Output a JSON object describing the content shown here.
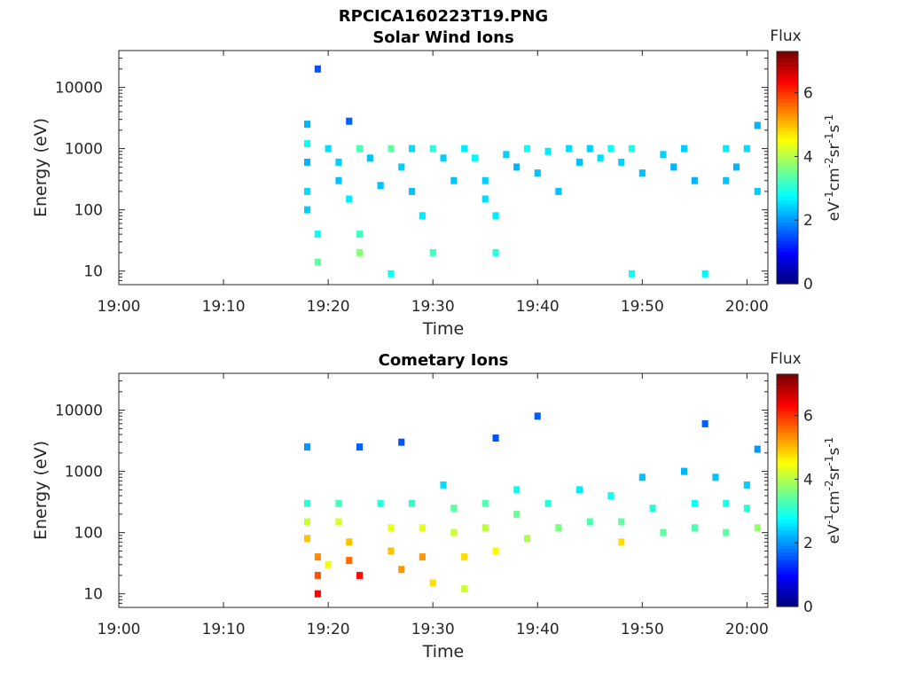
{
  "figure_title": "RPCICA160223T19.PNG",
  "chart_data": [
    {
      "type": "heatmap",
      "title": "Solar Wind Ions",
      "xlabel": "Time",
      "ylabel": "Energy (eV)",
      "x_range": [
        "19:00",
        "20:02"
      ],
      "x_ticks": [
        "19:00",
        "19:10",
        "19:20",
        "19:30",
        "19:40",
        "19:50",
        "20:00"
      ],
      "y_scale": "log",
      "y_range": [
        6,
        40000
      ],
      "y_ticks": [
        "10",
        "100",
        "1000",
        "10000"
      ],
      "colorbar": {
        "label": "Flux",
        "unit": "eV-1cm-2sr-1s-1",
        "range": [
          0,
          7.3
        ],
        "ticks": [
          "0",
          "2",
          "4",
          "6"
        ]
      },
      "data_start": "19:17",
      "cells": [
        {
          "t": "19:18",
          "e": 2500,
          "v": 2.2
        },
        {
          "t": "19:18",
          "e": 1200,
          "v": 2.8
        },
        {
          "t": "19:18",
          "e": 600,
          "v": 2.2
        },
        {
          "t": "19:18",
          "e": 200,
          "v": 2.5
        },
        {
          "t": "19:18",
          "e": 100,
          "v": 2.4
        },
        {
          "t": "19:19",
          "e": 40,
          "v": 2.8
        },
        {
          "t": "19:19",
          "e": 14,
          "v": 3.4
        },
        {
          "t": "19:19",
          "e": 20000,
          "v": 1.5
        },
        {
          "t": "19:20",
          "e": 1000,
          "v": 2.5
        },
        {
          "t": "19:21",
          "e": 600,
          "v": 2.4
        },
        {
          "t": "19:21",
          "e": 300,
          "v": 2.3
        },
        {
          "t": "19:22",
          "e": 150,
          "v": 2.6
        },
        {
          "t": "19:22",
          "e": 2800,
          "v": 1.6
        },
        {
          "t": "19:23",
          "e": 40,
          "v": 3.2
        },
        {
          "t": "19:23",
          "e": 20,
          "v": 3.7
        },
        {
          "t": "19:23",
          "e": 1000,
          "v": 3.3
        },
        {
          "t": "19:24",
          "e": 700,
          "v": 2.3
        },
        {
          "t": "19:25",
          "e": 250,
          "v": 2.3
        },
        {
          "t": "19:26",
          "e": 1000,
          "v": 3.4
        },
        {
          "t": "19:26",
          "e": 9,
          "v": 2.8
        },
        {
          "t": "19:27",
          "e": 500,
          "v": 2.4
        },
        {
          "t": "19:28",
          "e": 1000,
          "v": 2.5
        },
        {
          "t": "19:28",
          "e": 200,
          "v": 2.3
        },
        {
          "t": "19:29",
          "e": 80,
          "v": 2.6
        },
        {
          "t": "19:30",
          "e": 1000,
          "v": 3.0
        },
        {
          "t": "19:30",
          "e": 20,
          "v": 3.2
        },
        {
          "t": "19:31",
          "e": 700,
          "v": 2.4
        },
        {
          "t": "19:32",
          "e": 300,
          "v": 2.3
        },
        {
          "t": "19:33",
          "e": 1000,
          "v": 2.6
        },
        {
          "t": "19:34",
          "e": 700,
          "v": 2.7
        },
        {
          "t": "19:35",
          "e": 300,
          "v": 2.4
        },
        {
          "t": "19:35",
          "e": 150,
          "v": 2.5
        },
        {
          "t": "19:36",
          "e": 80,
          "v": 2.6
        },
        {
          "t": "19:36",
          "e": 20,
          "v": 3.0
        },
        {
          "t": "19:37",
          "e": 800,
          "v": 2.4
        },
        {
          "t": "19:38",
          "e": 500,
          "v": 2.2
        },
        {
          "t": "19:39",
          "e": 1000,
          "v": 2.8
        },
        {
          "t": "19:40",
          "e": 400,
          "v": 2.3
        },
        {
          "t": "19:41",
          "e": 900,
          "v": 2.6
        },
        {
          "t": "19:42",
          "e": 200,
          "v": 2.3
        },
        {
          "t": "19:43",
          "e": 1000,
          "v": 2.5
        },
        {
          "t": "19:44",
          "e": 600,
          "v": 2.3
        },
        {
          "t": "19:45",
          "e": 1000,
          "v": 2.4
        },
        {
          "t": "19:46",
          "e": 700,
          "v": 2.5
        },
        {
          "t": "19:47",
          "e": 1000,
          "v": 2.8
        },
        {
          "t": "19:48",
          "e": 600,
          "v": 2.4
        },
        {
          "t": "19:49",
          "e": 1000,
          "v": 2.9
        },
        {
          "t": "19:49",
          "e": 9,
          "v": 2.8
        },
        {
          "t": "19:50",
          "e": 400,
          "v": 2.3
        },
        {
          "t": "19:52",
          "e": 800,
          "v": 2.4
        },
        {
          "t": "19:53",
          "e": 500,
          "v": 2.2
        },
        {
          "t": "19:54",
          "e": 1000,
          "v": 2.4
        },
        {
          "t": "19:55",
          "e": 300,
          "v": 2.2
        },
        {
          "t": "19:56",
          "e": 9,
          "v": 2.7
        },
        {
          "t": "19:58",
          "e": 1000,
          "v": 2.6
        },
        {
          "t": "19:58",
          "e": 300,
          "v": 2.3
        },
        {
          "t": "19:59",
          "e": 500,
          "v": 2.2
        },
        {
          "t": "20:00",
          "e": 1000,
          "v": 2.5
        },
        {
          "t": "20:01",
          "e": 200,
          "v": 2.4
        },
        {
          "t": "20:01",
          "e": 2400,
          "v": 2.2
        }
      ]
    },
    {
      "type": "heatmap",
      "title": "Cometary Ions",
      "xlabel": "Time",
      "ylabel": "Energy (eV)",
      "x_range": [
        "19:00",
        "20:02"
      ],
      "x_ticks": [
        "19:00",
        "19:10",
        "19:20",
        "19:30",
        "19:40",
        "19:50",
        "20:00"
      ],
      "y_scale": "log",
      "y_range": [
        6,
        40000
      ],
      "y_ticks": [
        "10",
        "100",
        "1000",
        "10000"
      ],
      "colorbar": {
        "label": "Flux",
        "unit": "eV-1cm-2sr-1s-1",
        "range": [
          0,
          7.3
        ],
        "ticks": [
          "0",
          "2",
          "4",
          "6"
        ]
      },
      "data_start": "19:17",
      "cells": [
        {
          "t": "19:18",
          "e": 2500,
          "v": 2.0
        },
        {
          "t": "19:18",
          "e": 300,
          "v": 3.0
        },
        {
          "t": "19:18",
          "e": 150,
          "v": 4.2
        },
        {
          "t": "19:18",
          "e": 80,
          "v": 5.0
        },
        {
          "t": "19:19",
          "e": 40,
          "v": 5.4
        },
        {
          "t": "19:19",
          "e": 20,
          "v": 5.8
        },
        {
          "t": "19:19",
          "e": 10,
          "v": 6.4
        },
        {
          "t": "19:20",
          "e": 30,
          "v": 4.5
        },
        {
          "t": "19:21",
          "e": 300,
          "v": 3.2
        },
        {
          "t": "19:21",
          "e": 150,
          "v": 4.3
        },
        {
          "t": "19:22",
          "e": 70,
          "v": 5.0
        },
        {
          "t": "19:22",
          "e": 35,
          "v": 5.6
        },
        {
          "t": "19:23",
          "e": 20,
          "v": 6.3
        },
        {
          "t": "19:23",
          "e": 2500,
          "v": 1.6
        },
        {
          "t": "19:25",
          "e": 300,
          "v": 3.0
        },
        {
          "t": "19:26",
          "e": 120,
          "v": 4.4
        },
        {
          "t": "19:26",
          "e": 50,
          "v": 5.0
        },
        {
          "t": "19:27",
          "e": 25,
          "v": 5.3
        },
        {
          "t": "19:27",
          "e": 3000,
          "v": 1.5
        },
        {
          "t": "19:28",
          "e": 300,
          "v": 3.1
        },
        {
          "t": "19:29",
          "e": 120,
          "v": 4.4
        },
        {
          "t": "19:29",
          "e": 40,
          "v": 5.3
        },
        {
          "t": "19:30",
          "e": 15,
          "v": 4.8
        },
        {
          "t": "19:31",
          "e": 600,
          "v": 2.5
        },
        {
          "t": "19:32",
          "e": 250,
          "v": 3.4
        },
        {
          "t": "19:32",
          "e": 100,
          "v": 4.2
        },
        {
          "t": "19:33",
          "e": 40,
          "v": 4.8
        },
        {
          "t": "19:33",
          "e": 12,
          "v": 4.2
        },
        {
          "t": "19:35",
          "e": 300,
          "v": 3.3
        },
        {
          "t": "19:35",
          "e": 120,
          "v": 4.1
        },
        {
          "t": "19:36",
          "e": 50,
          "v": 4.6
        },
        {
          "t": "19:36",
          "e": 3500,
          "v": 1.5
        },
        {
          "t": "19:38",
          "e": 500,
          "v": 2.8
        },
        {
          "t": "19:38",
          "e": 200,
          "v": 3.5
        },
        {
          "t": "19:39",
          "e": 80,
          "v": 4.0
        },
        {
          "t": "19:40",
          "e": 8000,
          "v": 1.6
        },
        {
          "t": "19:41",
          "e": 300,
          "v": 3.0
        },
        {
          "t": "19:42",
          "e": 120,
          "v": 3.6
        },
        {
          "t": "19:44",
          "e": 500,
          "v": 2.6
        },
        {
          "t": "19:45",
          "e": 150,
          "v": 3.3
        },
        {
          "t": "19:47",
          "e": 400,
          "v": 2.8
        },
        {
          "t": "19:48",
          "e": 150,
          "v": 3.4
        },
        {
          "t": "19:48",
          "e": 70,
          "v": 4.8
        },
        {
          "t": "19:50",
          "e": 800,
          "v": 2.3
        },
        {
          "t": "19:51",
          "e": 250,
          "v": 3.0
        },
        {
          "t": "19:52",
          "e": 100,
          "v": 3.4
        },
        {
          "t": "19:54",
          "e": 1000,
          "v": 2.2
        },
        {
          "t": "19:55",
          "e": 300,
          "v": 2.8
        },
        {
          "t": "19:55",
          "e": 120,
          "v": 3.3
        },
        {
          "t": "19:56",
          "e": 6000,
          "v": 1.6
        },
        {
          "t": "19:57",
          "e": 800,
          "v": 2.3
        },
        {
          "t": "19:58",
          "e": 300,
          "v": 2.9
        },
        {
          "t": "19:58",
          "e": 100,
          "v": 3.4
        },
        {
          "t": "20:00",
          "e": 600,
          "v": 2.4
        },
        {
          "t": "20:00",
          "e": 250,
          "v": 3.0
        },
        {
          "t": "20:01",
          "e": 120,
          "v": 3.8
        },
        {
          "t": "20:01",
          "e": 2300,
          "v": 2.0
        }
      ]
    }
  ]
}
